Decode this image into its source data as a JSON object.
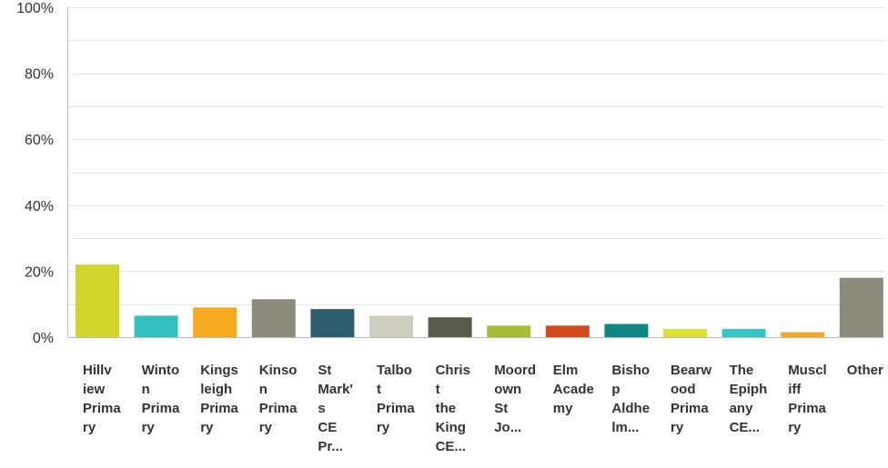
{
  "chart_data": {
    "type": "bar",
    "categories": [
      {
        "lines": [
          "Hillv",
          "iew",
          "Prima",
          "ry"
        ]
      },
      {
        "lines": [
          "Winto",
          "n",
          "Prima",
          "ry"
        ]
      },
      {
        "lines": [
          "Kings",
          "leigh",
          "Prima",
          "ry"
        ]
      },
      {
        "lines": [
          "Kinso",
          "n",
          "Prima",
          "ry"
        ]
      },
      {
        "lines": [
          "St",
          "Mark'",
          "s",
          "CE",
          "Pr..."
        ]
      },
      {
        "lines": [
          "Talbo",
          "t",
          "Prima",
          "ry"
        ]
      },
      {
        "lines": [
          "Chris",
          "t",
          "the",
          "King",
          "CE..."
        ]
      },
      {
        "lines": [
          "Moord",
          "own",
          "St",
          "Jo..."
        ]
      },
      {
        "lines": [
          "Elm",
          "Acade",
          "my"
        ]
      },
      {
        "lines": [
          "Bisho",
          "p",
          "Aldhe",
          "lm..."
        ]
      },
      {
        "lines": [
          "Bearw",
          "ood",
          "Prima",
          "ry"
        ]
      },
      {
        "lines": [
          "The",
          "Epiph",
          "any",
          "CE..."
        ]
      },
      {
        "lines": [
          "Muscl",
          "iff",
          "Prima",
          "ry"
        ]
      },
      {
        "lines": [
          "Other"
        ]
      }
    ],
    "values": [
      22,
      6.5,
      9,
      11.5,
      8.5,
      6.5,
      6,
      3.5,
      3.5,
      4,
      2.5,
      2.5,
      1.5,
      18
    ],
    "colors": [
      "#d0d62a",
      "#36bfc0",
      "#f5aa1d",
      "#8b8b7a",
      "#2d5e6c",
      "#cfcdbe",
      "#585a4a",
      "#a9be38",
      "#d24a20",
      "#0f8585",
      "#dbe132",
      "#36c4c8",
      "#f5a623",
      "#8b8b7a"
    ],
    "ylim": [
      0,
      100
    ],
    "yticks": [
      {
        "value": 0,
        "label": "0%"
      },
      {
        "value": 20,
        "label": "20%"
      },
      {
        "value": 40,
        "label": "40%"
      },
      {
        "value": 60,
        "label": "60%"
      },
      {
        "value": 80,
        "label": "80%"
      },
      {
        "value": 100,
        "label": "100%"
      }
    ],
    "grid": true,
    "gridColor": "#e5e5e5",
    "axisColor": "#bbbbbb"
  }
}
